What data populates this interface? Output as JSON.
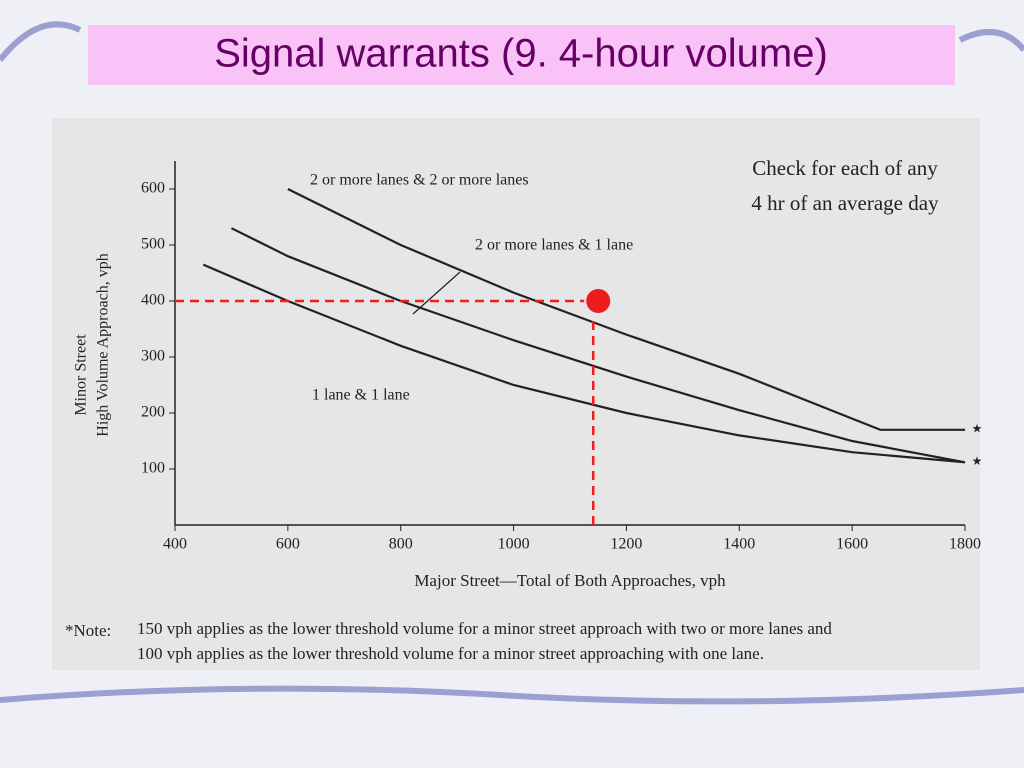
{
  "chart_data": {
    "type": "line",
    "title": "Signal warrants (9. 4-hour volume)",
    "annotation": [
      "Check for each of any",
      "4 hr of an average day"
    ],
    "y_label": [
      "Minor Street",
      "High Volume Approach, vph"
    ],
    "x_label": "Major Street—Total of Both Approaches, vph",
    "note_marker": "*Note:",
    "note": [
      "150 vph applies as the lower threshold volume for a minor street approach with two or more lanes and",
      "100 vph applies as the lower threshold volume for a minor street approaching with one lane."
    ],
    "xlim": [
      400,
      1800
    ],
    "ylim": [
      0,
      650
    ],
    "xticks": [
      400,
      600,
      800,
      1000,
      1200,
      1400,
      1600,
      1800
    ],
    "yticks": [
      100,
      200,
      300,
      400,
      500,
      600
    ],
    "grid": false,
    "series": [
      {
        "name": "2 or more lanes & 2 or more lanes",
        "color": "#222222",
        "end_mark": "★",
        "x": [
          600,
          800,
          1000,
          1200,
          1400,
          1600,
          1650,
          1800
        ],
        "values": [
          600,
          500,
          415,
          340,
          270,
          190,
          170,
          170
        ]
      },
      {
        "name": "2 or more lanes & 1 lane",
        "color": "#222222",
        "end_mark": "★",
        "x": [
          500,
          600,
          800,
          1000,
          1200,
          1400,
          1600,
          1800
        ],
        "values": [
          530,
          480,
          400,
          330,
          265,
          205,
          150,
          112
        ]
      },
      {
        "name": "1 lane & 1 lane",
        "color": "#222222",
        "x": [
          450,
          600,
          800,
          1000,
          1200,
          1400,
          1600,
          1800
        ],
        "values": [
          465,
          400,
          320,
          250,
          200,
          160,
          130,
          112
        ]
      }
    ],
    "marker": {
      "x": 1150,
      "y": 400,
      "color": "#ee1c1c"
    }
  }
}
